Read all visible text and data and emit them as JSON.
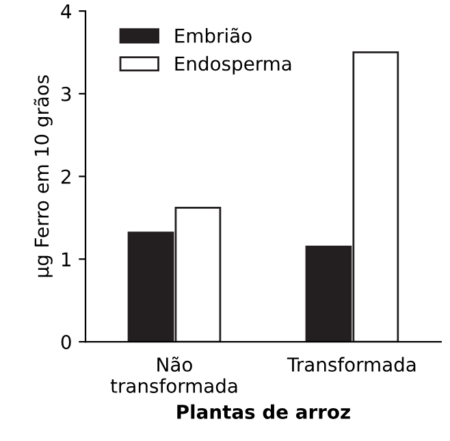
{
  "chart_data": {
    "type": "bar",
    "xlabel": "Plantas de arroz",
    "ylabel": "µg Ferro em 10 grãos",
    "categories": [
      "Não\ntransformada",
      "Transformada"
    ],
    "series": [
      {
        "name": "Embrião",
        "color": "#231f20",
        "values": [
          1.32,
          1.15
        ]
      },
      {
        "name": "Endosperma",
        "color": "#ffffff",
        "values": [
          1.62,
          3.5
        ]
      }
    ],
    "ylim": [
      0,
      4
    ],
    "yticks": [
      0,
      1,
      2,
      3,
      4
    ],
    "grid": false,
    "legend": "top left"
  }
}
